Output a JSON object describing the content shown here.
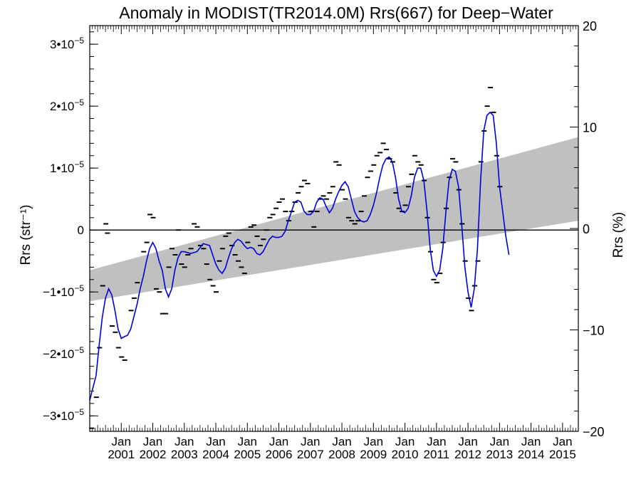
{
  "chart_data": {
    "type": "line",
    "title": "Anomaly in MODIST(TR2014.0M) Rrs(667) for Deep−Water",
    "ylabel": "Rrs (str⁻¹)",
    "y2label": "Rrs (%)",
    "xlabel": "",
    "x_range_years": [
      2000.0,
      2015.5
    ],
    "ylim": [
      -3.25e-05,
      3.3e-05
    ],
    "y2lim": [
      -20.0,
      20.0
    ],
    "y_ticks": [
      {
        "value": -3e-05,
        "label_mantissa": "−3",
        "label_exp": "−5"
      },
      {
        "value": -2e-05,
        "label_mantissa": "−2",
        "label_exp": "−5"
      },
      {
        "value": -1e-05,
        "label_mantissa": "−1",
        "label_exp": "−5"
      },
      {
        "value": 0,
        "label_mantissa": "0",
        "label_exp": ""
      },
      {
        "value": 1e-05,
        "label_mantissa": "1",
        "label_exp": "−5"
      },
      {
        "value": 2e-05,
        "label_mantissa": "2",
        "label_exp": "−5"
      },
      {
        "value": 3e-05,
        "label_mantissa": "3",
        "label_exp": "−5"
      }
    ],
    "y2_ticks": [
      -20,
      -10,
      0,
      10,
      20
    ],
    "x_ticks": [
      {
        "value": 2001.0,
        "top": "Jan",
        "bottom": "2001"
      },
      {
        "value": 2002.0,
        "top": "Jan",
        "bottom": "2002"
      },
      {
        "value": 2003.0,
        "top": "Jan",
        "bottom": "2003"
      },
      {
        "value": 2004.0,
        "top": "Jan",
        "bottom": "2004"
      },
      {
        "value": 2005.0,
        "top": "Jan",
        "bottom": "2005"
      },
      {
        "value": 2006.0,
        "top": "Jan",
        "bottom": "2006"
      },
      {
        "value": 2007.0,
        "top": "Jan",
        "bottom": "2007"
      },
      {
        "value": 2008.0,
        "top": "Jan",
        "bottom": "2008"
      },
      {
        "value": 2009.0,
        "top": "Jan",
        "bottom": "2009"
      },
      {
        "value": 2010.0,
        "top": "Jan",
        "bottom": "2010"
      },
      {
        "value": 2011.0,
        "top": "Jan",
        "bottom": "2011"
      },
      {
        "value": 2012.0,
        "top": "Jan",
        "bottom": "2012"
      },
      {
        "value": 2013.0,
        "top": "Jan",
        "bottom": "2013"
      },
      {
        "value": 2014.0,
        "top": "Jan",
        "bottom": "2014"
      },
      {
        "value": 2015.0,
        "top": "Jan",
        "bottom": "2015"
      }
    ],
    "trend_band": {
      "x": [
        2000.0,
        2015.5
      ],
      "lower": [
        -1.15e-05,
        1.5e-06
      ],
      "upper": [
        -6.5e-06,
        1.5e-05
      ],
      "color": "#c0c0c0"
    },
    "series": [
      {
        "kind": "smoothed",
        "color": "#0000dd",
        "points": [
          [
            2000.0,
            -2.75e-05
          ],
          [
            2000.1,
            -2.55e-05
          ],
          [
            2000.2,
            -2.35e-05
          ],
          [
            2000.3,
            -1.85e-05
          ],
          [
            2000.4,
            -1.4e-05
          ],
          [
            2000.5,
            -1.1e-05
          ],
          [
            2000.6,
            -9.5e-06
          ],
          [
            2000.7,
            -1.05e-05
          ],
          [
            2000.8,
            -1.3e-05
          ],
          [
            2000.9,
            -1.6e-05
          ],
          [
            2001.0,
            -1.75e-05
          ],
          [
            2001.1,
            -1.72e-05
          ],
          [
            2001.2,
            -1.7e-05
          ],
          [
            2001.3,
            -1.6e-05
          ],
          [
            2001.4,
            -1.4e-05
          ],
          [
            2001.5,
            -1.2e-05
          ],
          [
            2001.6,
            -9.5e-06
          ],
          [
            2001.7,
            -7.5e-06
          ],
          [
            2001.8,
            -5e-06
          ],
          [
            2001.9,
            -3e-06
          ],
          [
            2002.0,
            -2e-06
          ],
          [
            2002.1,
            -3e-06
          ],
          [
            2002.2,
            -5e-06
          ],
          [
            2002.3,
            -6.5e-06
          ],
          [
            2002.4,
            -9.5e-06
          ],
          [
            2002.5,
            -1.08e-05
          ],
          [
            2002.6,
            -9.5e-06
          ],
          [
            2002.7,
            -6.5e-06
          ],
          [
            2002.8,
            -4.5e-06
          ],
          [
            2002.9,
            -3.5e-06
          ],
          [
            2003.0,
            -3.5e-06
          ],
          [
            2003.2,
            -3.8e-06
          ],
          [
            2003.4,
            -3.5e-06
          ],
          [
            2003.6,
            -2.2e-06
          ],
          [
            2003.8,
            -2.5e-06
          ],
          [
            2003.9,
            -4e-06
          ],
          [
            2004.0,
            -5.5e-06
          ],
          [
            2004.1,
            -6.5e-06
          ],
          [
            2004.2,
            -7e-06
          ],
          [
            2004.3,
            -6.2e-06
          ],
          [
            2004.4,
            -4.5e-06
          ],
          [
            2004.5,
            -3e-06
          ],
          [
            2004.6,
            -2e-06
          ],
          [
            2004.7,
            -1.5e-06
          ],
          [
            2004.8,
            -1.8e-06
          ],
          [
            2004.9,
            -2.5e-06
          ],
          [
            2005.0,
            -3e-06
          ],
          [
            2005.1,
            -2.8e-06
          ],
          [
            2005.2,
            -3e-06
          ],
          [
            2005.3,
            -3.8e-06
          ],
          [
            2005.4,
            -4e-06
          ],
          [
            2005.5,
            -3.5e-06
          ],
          [
            2005.6,
            -2.5e-06
          ],
          [
            2005.7,
            -1.5e-06
          ],
          [
            2005.8,
            -1e-06
          ],
          [
            2005.9,
            -1.2e-06
          ],
          [
            2006.0,
            -1.2e-06
          ],
          [
            2006.1,
            -1e-06
          ],
          [
            2006.2,
            -2e-07
          ],
          [
            2006.3,
            1.5e-06
          ],
          [
            2006.4,
            3e-06
          ],
          [
            2006.5,
            4.5e-06
          ],
          [
            2006.6,
            4.8e-06
          ],
          [
            2006.7,
            4.5e-06
          ],
          [
            2006.8,
            3e-06
          ],
          [
            2006.9,
            2.5e-06
          ],
          [
            2007.0,
            2.5e-06
          ],
          [
            2007.1,
            3e-06
          ],
          [
            2007.2,
            4.5e-06
          ],
          [
            2007.3,
            5.2e-06
          ],
          [
            2007.4,
            5e-06
          ],
          [
            2007.5,
            3.8e-06
          ],
          [
            2007.6,
            2.8e-06
          ],
          [
            2007.7,
            3.5e-06
          ],
          [
            2007.8,
            5e-06
          ],
          [
            2007.9,
            6.2e-06
          ],
          [
            2008.0,
            7.2e-06
          ],
          [
            2008.1,
            7.8e-06
          ],
          [
            2008.2,
            7e-06
          ],
          [
            2008.3,
            5e-06
          ],
          [
            2008.4,
            3e-06
          ],
          [
            2008.5,
            2e-06
          ],
          [
            2008.6,
            1.5e-06
          ],
          [
            2008.7,
            1.3e-06
          ],
          [
            2008.8,
            1.5e-06
          ],
          [
            2008.9,
            2.5e-06
          ],
          [
            2009.0,
            4e-06
          ],
          [
            2009.1,
            6e-06
          ],
          [
            2009.2,
            8.5e-06
          ],
          [
            2009.3,
            1.05e-05
          ],
          [
            2009.4,
            1.15e-05
          ],
          [
            2009.5,
            1.18e-05
          ],
          [
            2009.6,
            1.1e-05
          ],
          [
            2009.7,
            8.5e-06
          ],
          [
            2009.8,
            5e-06
          ],
          [
            2009.9,
            3e-06
          ],
          [
            2010.0,
            2.8e-06
          ],
          [
            2010.1,
            3.5e-06
          ],
          [
            2010.2,
            5.5e-06
          ],
          [
            2010.3,
            8.5e-06
          ],
          [
            2010.4,
            1e-05
          ],
          [
            2010.5,
            1e-05
          ],
          [
            2010.6,
            8e-06
          ],
          [
            2010.7,
            3e-06
          ],
          [
            2010.8,
            -3e-06
          ],
          [
            2010.9,
            -6.5e-06
          ],
          [
            2011.0,
            -7.5e-06
          ],
          [
            2011.1,
            -6.5e-06
          ],
          [
            2011.2,
            -3e-06
          ],
          [
            2011.3,
            3e-06
          ],
          [
            2011.4,
            8e-06
          ],
          [
            2011.5,
            9.8e-06
          ],
          [
            2011.6,
            9.5e-06
          ],
          [
            2011.7,
            7e-06
          ],
          [
            2011.8,
            1e-06
          ],
          [
            2011.9,
            -6e-06
          ],
          [
            2012.0,
            -1e-05
          ],
          [
            2012.1,
            -1.25e-05
          ],
          [
            2012.2,
            -9.5e-06
          ],
          [
            2012.3,
            -3e-06
          ],
          [
            2012.4,
            8e-06
          ],
          [
            2012.5,
            1.6e-05
          ],
          [
            2012.6,
            1.85e-05
          ],
          [
            2012.7,
            1.9e-05
          ],
          [
            2012.8,
            1.85e-05
          ],
          [
            2012.9,
            1.4e-05
          ],
          [
            2013.0,
            7e-06
          ],
          [
            2013.1,
            3e-06
          ],
          [
            2013.2,
            -1e-06
          ],
          [
            2013.3,
            -4e-06
          ]
        ]
      },
      {
        "kind": "monthly",
        "color": "#000000",
        "points": [
          [
            2000.05,
            -3.2e-05
          ],
          [
            2000.2,
            -2.7e-05
          ],
          [
            2000.3,
            -1.9e-05
          ],
          [
            2000.4,
            -9e-06
          ],
          [
            2000.5,
            1e-06
          ],
          [
            2000.55,
            -5e-07
          ],
          [
            2000.7,
            -1.55e-05
          ],
          [
            2000.8,
            -1.65e-05
          ],
          [
            2000.9,
            -1.9e-05
          ],
          [
            2001.0,
            -2.05e-05
          ],
          [
            2001.1,
            -2.1e-05
          ],
          [
            2001.3,
            -1.3e-05
          ],
          [
            2001.4,
            -1.1e-05
          ],
          [
            2001.5,
            -8.5e-06
          ],
          [
            2001.7,
            -3.5e-06
          ],
          [
            2001.8,
            -2e-06
          ],
          [
            2001.9,
            2.5e-06
          ],
          [
            2002.0,
            2e-06
          ],
          [
            2002.1,
            -9.5e-06
          ],
          [
            2002.2,
            -1e-05
          ],
          [
            2002.3,
            -1.35e-05
          ],
          [
            2002.4,
            -1.35e-05
          ],
          [
            2002.5,
            -6e-06
          ],
          [
            2002.6,
            -3e-06
          ],
          [
            2002.7,
            -4e-06
          ],
          [
            2002.8,
            0.0
          ],
          [
            2002.9,
            -5.5e-06
          ],
          [
            2003.0,
            -6e-06
          ],
          [
            2003.1,
            -4e-06
          ],
          [
            2003.2,
            -3e-06
          ],
          [
            2003.3,
            1e-06
          ],
          [
            2003.4,
            5e-07
          ],
          [
            2003.5,
            -2.5e-06
          ],
          [
            2003.6,
            -3e-06
          ],
          [
            2003.7,
            -5.5e-06
          ],
          [
            2003.8,
            -8e-06
          ],
          [
            2003.9,
            -9e-06
          ],
          [
            2004.0,
            -1e-05
          ],
          [
            2004.1,
            -5e-06
          ],
          [
            2004.2,
            -3e-06
          ],
          [
            2004.3,
            -1e-06
          ],
          [
            2004.4,
            -5e-07
          ],
          [
            2004.5,
            -2.5e-06
          ],
          [
            2004.6,
            -4e-06
          ],
          [
            2004.7,
            -5e-06
          ],
          [
            2004.8,
            -6e-06
          ],
          [
            2004.9,
            -7e-06
          ],
          [
            2005.0,
            -2e-06
          ],
          [
            2005.1,
            5e-07
          ],
          [
            2005.2,
            8e-07
          ],
          [
            2005.3,
            -1e-06
          ],
          [
            2005.4,
            -2.5e-06
          ],
          [
            2005.5,
            -1.5e-06
          ],
          [
            2005.6,
            0.0
          ],
          [
            2005.7,
            2e-06
          ],
          [
            2005.8,
            2.5e-06
          ],
          [
            2005.9,
            3.5e-06
          ],
          [
            2006.0,
            4.5e-06
          ],
          [
            2006.1,
            5e-06
          ],
          [
            2006.2,
            3e-06
          ],
          [
            2006.3,
            1.5e-06
          ],
          [
            2006.4,
            3e-06
          ],
          [
            2006.5,
            4.5e-06
          ],
          [
            2006.6,
            6e-06
          ],
          [
            2006.7,
            7e-06
          ],
          [
            2006.8,
            8e-06
          ],
          [
            2006.9,
            7.5e-06
          ],
          [
            2007.0,
            3e-06
          ],
          [
            2007.1,
            5e-07
          ],
          [
            2007.2,
            3e-06
          ],
          [
            2007.3,
            5e-06
          ],
          [
            2007.4,
            5.5e-06
          ],
          [
            2007.5,
            5e-06
          ],
          [
            2007.6,
            6e-06
          ],
          [
            2007.7,
            7e-06
          ],
          [
            2007.8,
            1.1e-05
          ],
          [
            2007.9,
            1.05e-05
          ],
          [
            2008.0,
            6.5e-06
          ],
          [
            2008.1,
            5e-06
          ],
          [
            2008.2,
            2e-06
          ],
          [
            2008.3,
            1.5e-06
          ],
          [
            2008.4,
            1e-06
          ],
          [
            2008.5,
            1.5e-06
          ],
          [
            2008.6,
            3e-06
          ],
          [
            2008.7,
            5.5e-06
          ],
          [
            2008.8,
            8.5e-06
          ],
          [
            2008.9,
            9.5e-06
          ],
          [
            2009.0,
            1.05e-05
          ],
          [
            2009.1,
            1.2e-05
          ],
          [
            2009.2,
            1.25e-05
          ],
          [
            2009.3,
            1.4e-05
          ],
          [
            2009.4,
            1.3e-05
          ],
          [
            2009.5,
            1.15e-05
          ],
          [
            2009.6,
            1.1e-05
          ],
          [
            2009.7,
            6e-06
          ],
          [
            2009.8,
            3.5e-06
          ],
          [
            2009.9,
            3e-06
          ],
          [
            2010.0,
            4e-06
          ],
          [
            2010.1,
            7e-06
          ],
          [
            2010.2,
            9e-06
          ],
          [
            2010.3,
            1.2e-05
          ],
          [
            2010.4,
            1.1e-05
          ],
          [
            2010.5,
            1.05e-05
          ],
          [
            2010.6,
            8e-06
          ],
          [
            2010.7,
            2e-06
          ],
          [
            2010.8,
            -3.5e-06
          ],
          [
            2010.9,
            -8e-06
          ],
          [
            2011.0,
            -8.5e-06
          ],
          [
            2011.1,
            -7e-06
          ],
          [
            2011.2,
            -2e-06
          ],
          [
            2011.3,
            3.5e-06
          ],
          [
            2011.4,
            8.5e-06
          ],
          [
            2011.5,
            1.15e-05
          ],
          [
            2011.6,
            1.1e-05
          ],
          [
            2011.7,
            6.5e-06
          ],
          [
            2011.8,
            1e-06
          ],
          [
            2011.9,
            -5e-06
          ],
          [
            2012.0,
            -1.1e-05
          ],
          [
            2012.1,
            -1.3e-05
          ],
          [
            2012.2,
            -9e-06
          ],
          [
            2012.3,
            -5e-06
          ],
          [
            2012.4,
            1.1e-05
          ],
          [
            2012.5,
            1.6e-05
          ],
          [
            2012.6,
            2e-05
          ],
          [
            2012.7,
            2.3e-05
          ],
          [
            2012.8,
            1.9e-05
          ],
          [
            2012.9,
            1.2e-05
          ],
          [
            2013.0,
            7e-06
          ]
        ]
      }
    ]
  }
}
